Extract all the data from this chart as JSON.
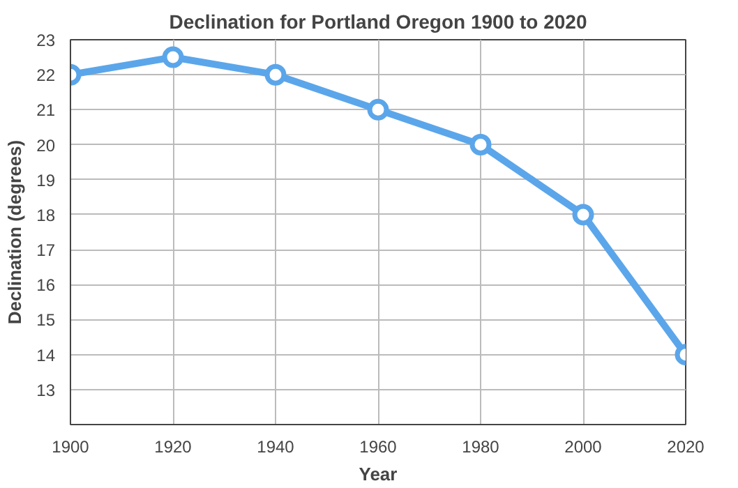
{
  "chart_data": {
    "type": "line",
    "title": "Declination for Portland Oregon 1900 to 2020",
    "xlabel": "Year",
    "ylabel": "Declination (degrees)",
    "x": [
      1900,
      1920,
      1940,
      1960,
      1980,
      2000,
      2020
    ],
    "series": [
      {
        "color": "#5ba6ea",
        "values": [
          22,
          22.5,
          22,
          21,
          20,
          18,
          14
        ]
      }
    ],
    "xlim": [
      1900,
      2020
    ],
    "xticks": [
      1900,
      1920,
      1940,
      1960,
      1980,
      2000,
      2020
    ],
    "ylim": [
      12,
      23
    ],
    "yticks": [
      13,
      14,
      15,
      16,
      17,
      18,
      19,
      20,
      21,
      22,
      23
    ],
    "grid": true,
    "marker": "circle",
    "line_style": "solid"
  }
}
